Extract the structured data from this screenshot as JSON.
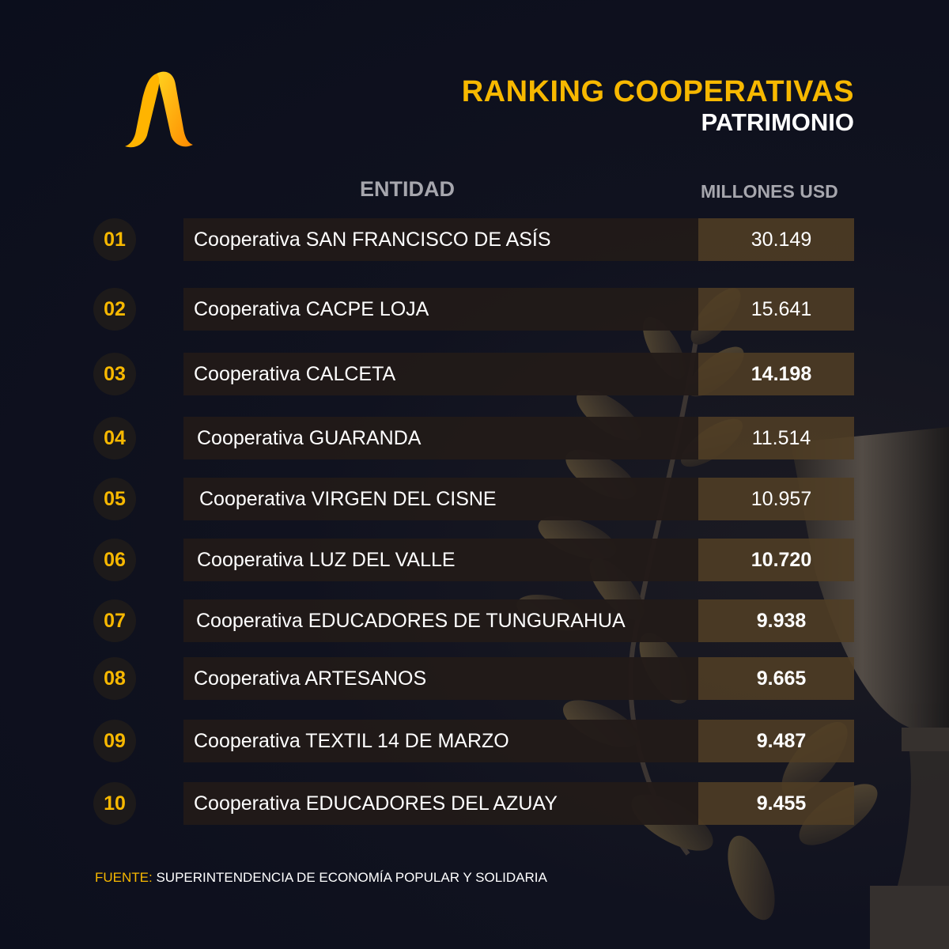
{
  "title": "RANKING COOPERATIVAS",
  "subtitle": "PATRIMONIO",
  "columns": {
    "entity": "ENTIDAD",
    "value": "MILLONES USD"
  },
  "rows": [
    {
      "rank": "01",
      "name": "Cooperativa SAN FRANCISCO DE ASÍS",
      "value": "30.149"
    },
    {
      "rank": "02",
      "name": "Cooperativa CACPE LOJA",
      "value": "15.641"
    },
    {
      "rank": "03",
      "name": "Cooperativa CALCETA",
      "value": "14.198"
    },
    {
      "rank": "04",
      "name": "Cooperativa GUARANDA",
      "value": "11.514"
    },
    {
      "rank": "05",
      "name": "Cooperativa VIRGEN DEL CISNE",
      "value": "10.957"
    },
    {
      "rank": "06",
      "name": "Cooperativa LUZ DEL VALLE",
      "value": "10.720"
    },
    {
      "rank": "07",
      "name": "Cooperativa EDUCADORES DE TUNGURAHUA",
      "value": "9.938"
    },
    {
      "rank": "08",
      "name": "Cooperativa ARTESANOS",
      "value": "9.665"
    },
    {
      "rank": "09",
      "name": "Cooperativa TEXTIL 14 DE MARZO",
      "value": "9.487"
    },
    {
      "rank": "10",
      "name": "Cooperativa EDUCADORES DEL AZUAY",
      "value": "9.455"
    }
  ],
  "source": {
    "label": "FUENTE:",
    "text": "SUPERINTENDENCIA DE ECONOMÍA POPULAR Y SOLIDARIA"
  },
  "colors": {
    "accent": "#f7b800",
    "background": "#0d1020",
    "bar": "#221a18",
    "value_bar": "#503e24"
  },
  "decor_icons": [
    "trophy-icon",
    "laurel-icon"
  ]
}
